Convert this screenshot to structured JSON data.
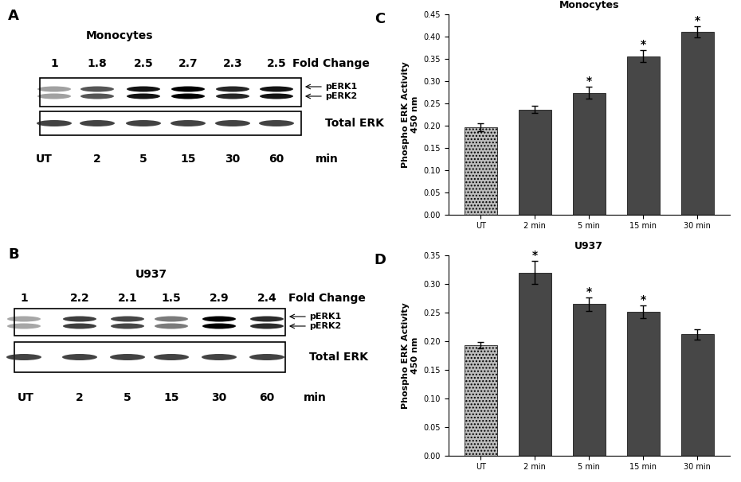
{
  "blots": [
    {
      "panel": "A",
      "title": "Monocytes",
      "fold_change_label": "Fold Change",
      "fold_change": [
        1,
        1.8,
        2.5,
        2.7,
        2.3,
        2.5
      ],
      "fold_change_labels": [
        "1",
        "1.8",
        "2.5",
        "2.7",
        "2.3",
        "2.5"
      ],
      "band_labels": [
        "pERK1",
        "pERK2"
      ],
      "loading_label": "Total ERK",
      "lanes": [
        "UT",
        "2",
        "5",
        "15",
        "30",
        "60"
      ],
      "lane_unit": "min"
    },
    {
      "panel": "B",
      "title": "U937",
      "fold_change_label": "Fold Change",
      "fold_change": [
        1,
        2.2,
        2.1,
        1.5,
        2.9,
        2.4
      ],
      "fold_change_labels": [
        "1",
        "2.2",
        "2.1",
        "1.5",
        "2.9",
        "2.4"
      ],
      "band_labels": [
        "pERK1",
        "pERK2"
      ],
      "loading_label": "Total ERK",
      "lanes": [
        "UT",
        "2",
        "5",
        "15",
        "30",
        "60"
      ],
      "lane_unit": "min"
    }
  ],
  "chart_data": [
    {
      "type": "bar",
      "panel": "C",
      "title": "Monocytes",
      "y_label": "Phospho ERK Activity\n450 nm",
      "categories": [
        "UT",
        "2 min",
        "5 min",
        "15 min",
        "30 min"
      ],
      "values": [
        0.197,
        0.236,
        0.274,
        0.356,
        0.411
      ],
      "errors": [
        0.009,
        0.008,
        0.014,
        0.013,
        0.012
      ],
      "significance": [
        null,
        null,
        "*",
        "*",
        "*"
      ],
      "colors": [
        "#bdbdbd",
        "#474747",
        "#474747",
        "#474747",
        "#474747"
      ],
      "ylim": [
        0,
        0.45
      ],
      "yticks": [
        {
          "value": 0,
          "label": "0.00"
        },
        {
          "value": 0.05,
          "label": "0.05"
        },
        {
          "value": 0.1,
          "label": "0.10"
        },
        {
          "value": 0.15,
          "label": "0.15"
        },
        {
          "value": 0.2,
          "label": "0.20"
        },
        {
          "value": 0.25,
          "label": "0.25"
        },
        {
          "value": 0.3,
          "label": "0.30"
        },
        {
          "value": 0.35,
          "label": "0.35"
        },
        {
          "value": 0.4,
          "label": "0.40"
        },
        {
          "value": 0.45,
          "label": "0.45"
        }
      ],
      "grid": false
    },
    {
      "type": "bar",
      "panel": "D",
      "title": "U937",
      "y_label": "Phospho ERK Activity\n450 nm",
      "categories": [
        "UT",
        "2 min",
        "5 min",
        "15 min",
        "30 min"
      ],
      "values": [
        0.193,
        0.32,
        0.265,
        0.251,
        0.212
      ],
      "errors": [
        0.005,
        0.02,
        0.012,
        0.011,
        0.009
      ],
      "significance": [
        null,
        "*",
        "*",
        "*",
        null
      ],
      "colors": [
        "#bdbdbd",
        "#474747",
        "#474747",
        "#474747",
        "#474747"
      ],
      "ylim": [
        0,
        0.35
      ],
      "yticks": [
        {
          "value": 0,
          "label": "0.00"
        },
        {
          "value": 0.05,
          "label": "0.05"
        },
        {
          "value": 0.1,
          "label": "0.10"
        },
        {
          "value": 0.15,
          "label": "0.15"
        },
        {
          "value": 0.2,
          "label": "0.20"
        },
        {
          "value": 0.25,
          "label": "0.25"
        },
        {
          "value": 0.3,
          "label": "0.30"
        },
        {
          "value": 0.35,
          "label": "0.35"
        }
      ],
      "grid": false
    }
  ]
}
